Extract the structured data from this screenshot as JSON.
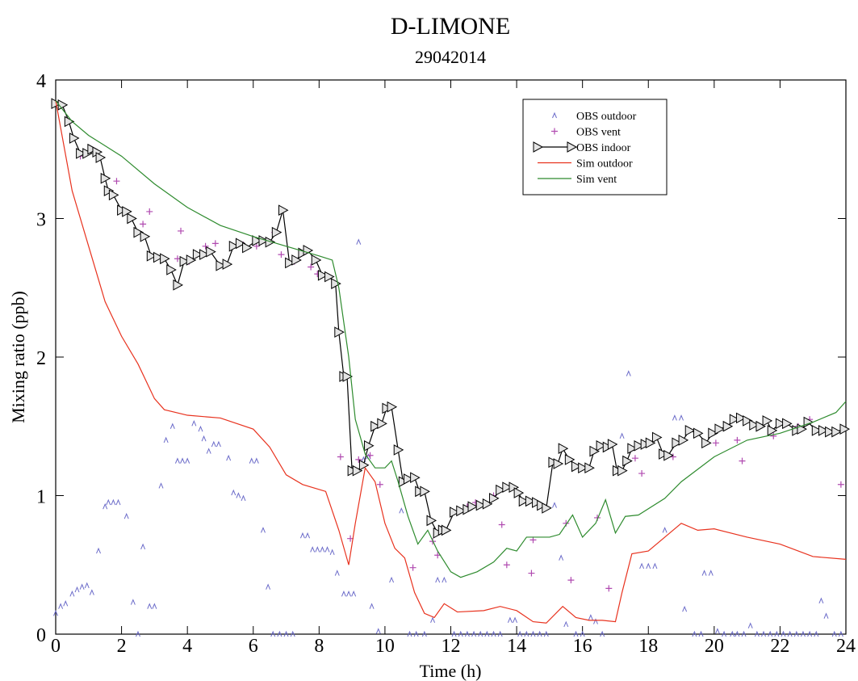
{
  "chart_data": {
    "type": "line",
    "title": "D-LIMONE",
    "subtitle": "29042014",
    "x_label": "Time (h)",
    "y_label": "Mixing ratio (ppb)",
    "xlim": [
      0,
      24
    ],
    "ylim": [
      0,
      4
    ],
    "xticks": [
      0,
      2,
      4,
      6,
      8,
      10,
      12,
      14,
      16,
      18,
      20,
      22,
      24
    ],
    "yticks": [
      0,
      1,
      2,
      3,
      4
    ],
    "grid": false,
    "legend": "upper right",
    "series": [
      {
        "name": "OBS outdoor",
        "color": "#6b6bc9",
        "style": "caret",
        "x": [
          0,
          0.15,
          0.3,
          0.5,
          0.65,
          0.8,
          0.95,
          1.1,
          1.3,
          1.5,
          1.6,
          1.75,
          1.9,
          2.15,
          2.35,
          2.5,
          2.65,
          2.85,
          3,
          3.2,
          3.35,
          3.55,
          3.7,
          3.85,
          4,
          4.2,
          4.4,
          4.5,
          4.65,
          4.8,
          4.95,
          5.25,
          5.4,
          5.55,
          5.7,
          5.95,
          6.1,
          6.3,
          6.45,
          6.6,
          6.8,
          7,
          7.2,
          7.5,
          7.65,
          7.8,
          7.95,
          8.1,
          8.25,
          8.4,
          8.55,
          8.75,
          8.9,
          9.05,
          9.2,
          9.35,
          9.5,
          9.6,
          9.8,
          10.2,
          10.5,
          10.75,
          10.95,
          11.2,
          11.45,
          11.6,
          11.8,
          12.1,
          12.3,
          12.5,
          12.7,
          12.9,
          13.1,
          13.3,
          13.5,
          13.8,
          13.95,
          14.1,
          14.3,
          14.5,
          14.7,
          14.9,
          15.15,
          15.35,
          15.5,
          15.8,
          16,
          16.25,
          16.4,
          16.6,
          17.2,
          17.4,
          17.8,
          18,
          18.2,
          18.5,
          18.8,
          19,
          19.1,
          19.4,
          19.6,
          19.7,
          19.9,
          20.1,
          20.3,
          20.55,
          20.7,
          20.9,
          21.1,
          21.3,
          21.5,
          21.7,
          21.9,
          22.1,
          22.3,
          22.5,
          22.7,
          22.9,
          23.1,
          23.25,
          23.4,
          23.65,
          23.85
        ],
        "values": [
          0.15,
          0.2,
          0.22,
          0.29,
          0.32,
          0.34,
          0.35,
          0.3,
          0.6,
          0.92,
          0.95,
          0.95,
          0.95,
          0.85,
          0.23,
          0,
          0.63,
          0.2,
          0.2,
          1.07,
          1.4,
          1.5,
          1.25,
          1.25,
          1.25,
          1.52,
          1.48,
          1.41,
          1.32,
          1.37,
          1.37,
          1.27,
          1.02,
          1.0,
          0.98,
          1.25,
          1.25,
          0.75,
          0.34,
          0,
          0,
          0,
          0,
          0.71,
          0.71,
          0.61,
          0.61,
          0.61,
          0.61,
          0.59,
          0.44,
          0.29,
          0.29,
          0.29,
          2.83,
          1.26,
          1.28,
          0.2,
          0.02,
          0.39,
          0.89,
          0,
          0,
          0,
          0.1,
          0.39,
          0.39,
          0,
          0,
          0,
          0,
          0,
          0,
          0,
          0,
          0.1,
          0.1,
          0,
          0,
          0,
          0,
          0,
          0.93,
          0.55,
          0.07,
          0,
          0,
          0.12,
          0.09,
          0,
          1.43,
          1.88,
          0.49,
          0.49,
          0.49,
          0.75,
          1.56,
          1.56,
          0.18,
          0,
          0,
          0.44,
          0.44,
          0.02,
          0,
          0,
          0,
          0,
          0.06,
          0,
          0,
          0,
          0,
          0,
          0,
          0,
          0,
          0,
          0,
          0.24,
          0.13,
          0,
          0
        ]
      },
      {
        "name": "OBS vent",
        "color": "#b04ab0",
        "style": "plus",
        "x": [
          0.75,
          1.85,
          2.65,
          2.85,
          3.7,
          3.8,
          4.05,
          4.55,
          4.85,
          5.7,
          6.1,
          6.65,
          6.85,
          7.25,
          7.75,
          7.95,
          8.65,
          8.95,
          9.2,
          9.55,
          9.85,
          10.85,
          11.45,
          11.6,
          12.5,
          12.75,
          13.3,
          13.55,
          13.7,
          14.45,
          14.5,
          15.5,
          15.65,
          16.45,
          16.8,
          17.6,
          17.8,
          18.75,
          20.05,
          20.7,
          20.85,
          21.8,
          22.55,
          22.9,
          23.85
        ],
        "values": [
          3.45,
          3.27,
          2.96,
          3.05,
          2.71,
          2.91,
          2.69,
          2.8,
          2.82,
          2.81,
          2.8,
          2.9,
          2.74,
          2.69,
          2.65,
          2.6,
          1.28,
          0.69,
          1.26,
          1.29,
          1.08,
          0.48,
          0.67,
          0.57,
          0.92,
          0.95,
          1.0,
          0.79,
          0.5,
          0.44,
          0.68,
          0.8,
          0.39,
          0.84,
          0.33,
          1.27,
          1.16,
          1.28,
          1.38,
          1.4,
          1.25,
          1.43,
          1.5,
          1.55,
          1.08
        ]
      },
      {
        "name": "OBS indoor",
        "color": "#000000",
        "style": "line-triangle",
        "x": [
          0,
          0.2,
          0.4,
          0.55,
          0.75,
          0.95,
          1.1,
          1.25,
          1.35,
          1.5,
          1.6,
          1.75,
          2,
          2.15,
          2.3,
          2.5,
          2.7,
          2.9,
          3.1,
          3.3,
          3.5,
          3.7,
          3.9,
          4.1,
          4.3,
          4.5,
          4.7,
          5,
          5.2,
          5.4,
          5.6,
          5.8,
          6.1,
          6.3,
          6.5,
          6.7,
          6.9,
          7.1,
          7.3,
          7.5,
          7.65,
          7.9,
          8.1,
          8.3,
          8.5,
          8.6,
          8.75,
          8.85,
          9,
          9.15,
          9.35,
          9.5,
          9.7,
          9.9,
          10.05,
          10.2,
          10.4,
          10.55,
          10.7,
          10.9,
          11.05,
          11.2,
          11.4,
          11.6,
          11.75,
          11.85,
          12.1,
          12.3,
          12.5,
          12.65,
          12.9,
          13.1,
          13.3,
          13.5,
          13.7,
          13.9,
          14.05,
          14.2,
          14.4,
          14.6,
          14.75,
          14.9,
          15.1,
          15.25,
          15.4,
          15.6,
          15.8,
          16,
          16.2,
          16.35,
          16.55,
          16.75,
          16.9,
          17.05,
          17.2,
          17.35,
          17.5,
          17.7,
          17.9,
          18.05,
          18.25,
          18.45,
          18.6,
          18.85,
          19.05,
          19.25,
          19.5,
          19.75,
          19.95,
          20.15,
          20.4,
          20.6,
          20.8,
          21,
          21.2,
          21.4,
          21.6,
          21.75,
          22,
          22.2,
          22.5,
          22.65,
          22.85,
          23.1,
          23.3,
          23.5,
          23.7,
          23.95
        ],
        "values": [
          3.83,
          3.82,
          3.7,
          3.58,
          3.47,
          3.47,
          3.5,
          3.48,
          3.44,
          3.29,
          3.2,
          3.17,
          3.06,
          3.05,
          3.0,
          2.9,
          2.87,
          2.73,
          2.72,
          2.71,
          2.63,
          2.52,
          2.69,
          2.7,
          2.74,
          2.74,
          2.76,
          2.66,
          2.67,
          2.8,
          2.82,
          2.79,
          2.84,
          2.84,
          2.83,
          2.9,
          3.06,
          2.68,
          2.7,
          2.75,
          2.77,
          2.7,
          2.59,
          2.58,
          2.53,
          2.18,
          1.86,
          1.86,
          1.18,
          1.18,
          1.22,
          1.36,
          1.5,
          1.52,
          1.63,
          1.64,
          1.33,
          1.1,
          1.12,
          1.13,
          1.03,
          1.03,
          0.82,
          0.73,
          0.75,
          0.75,
          0.88,
          0.89,
          0.9,
          0.92,
          0.93,
          0.94,
          0.98,
          1.04,
          1.06,
          1.06,
          1.02,
          0.96,
          0.96,
          0.95,
          0.93,
          0.91,
          1.24,
          1.23,
          1.34,
          1.26,
          1.21,
          1.2,
          1.2,
          1.32,
          1.36,
          1.35,
          1.37,
          1.18,
          1.18,
          1.25,
          1.34,
          1.36,
          1.37,
          1.38,
          1.42,
          1.3,
          1.29,
          1.38,
          1.4,
          1.47,
          1.45,
          1.38,
          1.45,
          1.48,
          1.5,
          1.55,
          1.56,
          1.54,
          1.51,
          1.5,
          1.54,
          1.47,
          1.52,
          1.52,
          1.47,
          1.48,
          1.53,
          1.47,
          1.47,
          1.46,
          1.46,
          1.48
        ]
      },
      {
        "name": "Sim outdoor",
        "color": "#e8321e",
        "style": "line",
        "x": [
          0,
          0.5,
          1,
          1.5,
          2,
          2.5,
          3,
          3.3,
          4,
          5,
          6,
          6.5,
          7,
          7.5,
          8.2,
          8.6,
          8.9,
          9.1,
          9.4,
          9.7,
          10,
          10.3,
          10.6,
          10.9,
          11.2,
          11.5,
          11.8,
          12.2,
          13,
          13.5,
          14,
          14.5,
          14.9,
          15.4,
          15.8,
          16.2,
          16.6,
          17,
          17.2,
          17.5,
          18,
          18.5,
          19,
          19.5,
          20,
          21,
          22,
          23,
          24
        ],
        "values": [
          3.85,
          3.2,
          2.8,
          2.4,
          2.15,
          1.95,
          1.7,
          1.62,
          1.58,
          1.56,
          1.48,
          1.35,
          1.15,
          1.08,
          1.03,
          0.75,
          0.5,
          0.8,
          1.2,
          1.1,
          0.8,
          0.62,
          0.55,
          0.3,
          0.15,
          0.12,
          0.22,
          0.16,
          0.17,
          0.2,
          0.17,
          0.09,
          0.08,
          0.2,
          0.12,
          0.1,
          0.1,
          0.09,
          0.3,
          0.58,
          0.6,
          0.7,
          0.8,
          0.75,
          0.76,
          0.7,
          0.65,
          0.56,
          0.54
        ]
      },
      {
        "name": "Sim vent",
        "color": "#2e8b2e",
        "style": "line",
        "x": [
          0,
          0.5,
          1,
          2,
          3,
          4,
          5,
          6,
          7,
          8,
          8.4,
          8.6,
          8.9,
          9.1,
          9.4,
          9.7,
          10,
          10.2,
          10.4,
          10.7,
          11,
          11.3,
          11.6,
          12,
          12.3,
          12.8,
          13.3,
          13.7,
          14,
          14.3,
          14.6,
          15,
          15.3,
          15.7,
          16,
          16.4,
          16.7,
          17,
          17.3,
          17.7,
          18.5,
          19,
          20,
          21,
          22,
          23,
          23.7,
          24
        ],
        "values": [
          3.85,
          3.7,
          3.6,
          3.45,
          3.25,
          3.08,
          2.95,
          2.87,
          2.8,
          2.73,
          2.7,
          2.5,
          2.0,
          1.55,
          1.3,
          1.2,
          1.2,
          1.25,
          1.1,
          0.85,
          0.65,
          0.75,
          0.6,
          0.45,
          0.41,
          0.45,
          0.52,
          0.62,
          0.6,
          0.7,
          0.7,
          0.7,
          0.72,
          0.86,
          0.7,
          0.8,
          0.97,
          0.73,
          0.85,
          0.86,
          0.98,
          1.1,
          1.28,
          1.4,
          1.45,
          1.53,
          1.6,
          1.68
        ]
      }
    ]
  }
}
